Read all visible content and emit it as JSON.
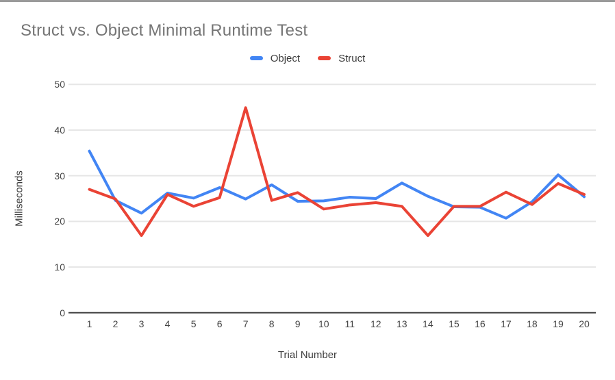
{
  "chart_data": {
    "type": "line",
    "title": "Struct vs. Object Minimal Runtime Test",
    "xlabel": "Trial Number",
    "ylabel": "Milliseconds",
    "categories": [
      "1",
      "2",
      "3",
      "4",
      "5",
      "6",
      "7",
      "8",
      "9",
      "10",
      "11",
      "12",
      "13",
      "14",
      "15",
      "16",
      "17",
      "18",
      "19",
      "20"
    ],
    "yticks": [
      0,
      10,
      20,
      30,
      40,
      50
    ],
    "ylim": [
      0,
      50
    ],
    "grid": "horizontal",
    "legend_position": "top-center",
    "series": [
      {
        "name": "Object",
        "color": "#4285f4",
        "values": [
          35.4,
          24.6,
          21.8,
          26.2,
          25.1,
          27.4,
          24.9,
          28.0,
          24.4,
          24.5,
          25.3,
          25.0,
          28.4,
          25.5,
          23.2,
          23.1,
          20.7,
          24.3,
          30.2,
          25.4
        ]
      },
      {
        "name": "Struct",
        "color": "#ea4335",
        "values": [
          27.0,
          24.9,
          16.9,
          25.9,
          23.3,
          25.2,
          44.9,
          24.6,
          26.3,
          22.7,
          23.6,
          24.1,
          23.3,
          16.9,
          23.3,
          23.3,
          26.4,
          23.7,
          28.3,
          25.9
        ]
      }
    ]
  }
}
